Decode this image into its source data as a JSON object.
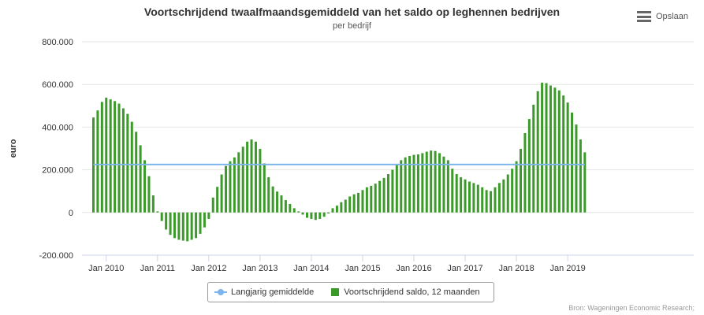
{
  "header": {
    "title": "Voortschrijdend twaalfmaandsgemiddeld van het saldo op leghennen bedrijven",
    "subtitle": "per bedrijf"
  },
  "menu": {
    "label": "Opslaan",
    "icon": "hamburger-menu-icon"
  },
  "legend": {
    "items": [
      {
        "label": "Langjarig gemiddelde",
        "color": "#7cb5ec",
        "symbol": "line-marker"
      },
      {
        "label": "Voortschrijdend saldo, 12 maanden",
        "color": "#3c9a2a",
        "symbol": "square"
      }
    ]
  },
  "source": "Bron: Wageningen Economic Research;",
  "chart_data": {
    "type": "bar",
    "ylabel": "euro",
    "xlabel": "",
    "ylim": [
      -200000,
      800000
    ],
    "yticks": [
      -200000,
      0,
      200000,
      400000,
      600000,
      800000
    ],
    "ytick_labels": [
      "-200.000",
      "0",
      "200.000",
      "400.000",
      "600.000",
      "800.000"
    ],
    "xtick_labels": [
      "Jan 2010",
      "Jan 2011",
      "Jan 2012",
      "Jan 2013",
      "Jan 2014",
      "Jan 2015",
      "Jan 2016",
      "Jan 2017",
      "Jan 2018",
      "Jan 2019"
    ],
    "grid": "horizontal",
    "legend_position": "bottom-center",
    "series": [
      {
        "name": "Voortschrijdend saldo, 12 maanden",
        "type": "bar",
        "color": "#3c9a2a",
        "start": "2009-10",
        "interval": "month",
        "values": [
          445000,
          478000,
          518000,
          538000,
          530000,
          522000,
          510000,
          488000,
          462000,
          425000,
          378000,
          315000,
          245000,
          170000,
          80000,
          5000,
          -40000,
          -80000,
          -105000,
          -120000,
          -128000,
          -132000,
          -135000,
          -128000,
          -120000,
          -100000,
          -70000,
          -30000,
          70000,
          120000,
          178000,
          218000,
          240000,
          258000,
          282000,
          308000,
          332000,
          342000,
          332000,
          298000,
          230000,
          165000,
          122000,
          98000,
          80000,
          58000,
          40000,
          20000,
          5000,
          -10000,
          -25000,
          -30000,
          -35000,
          -30000,
          -20000,
          -5000,
          20000,
          32000,
          48000,
          60000,
          75000,
          85000,
          92000,
          105000,
          118000,
          125000,
          135000,
          148000,
          162000,
          180000,
          200000,
          225000,
          245000,
          258000,
          265000,
          270000,
          272000,
          278000,
          285000,
          290000,
          288000,
          278000,
          262000,
          245000,
          205000,
          180000,
          165000,
          155000,
          145000,
          138000,
          130000,
          118000,
          105000,
          100000,
          118000,
          138000,
          155000,
          178000,
          205000,
          240000,
          298000,
          372000,
          438000,
          505000,
          568000,
          608000,
          606000,
          595000,
          585000,
          572000,
          548000,
          515000,
          468000,
          412000,
          342000,
          282000
        ]
      },
      {
        "name": "Langjarig gemiddelde",
        "type": "line",
        "color": "#7cb5ec",
        "constant_value": 225000
      }
    ]
  }
}
